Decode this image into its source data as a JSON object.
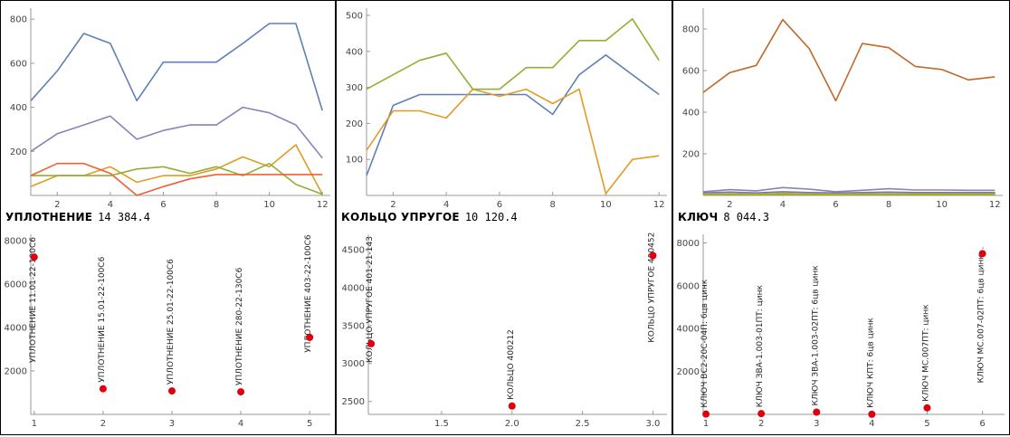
{
  "chart_data": [
    {
      "type": "line",
      "x": [
        1,
        2,
        3,
        4,
        5,
        6,
        7,
        8,
        9,
        10,
        11,
        12
      ],
      "xticks": [
        2,
        4,
        6,
        8,
        10,
        12
      ],
      "yticks": [
        200,
        400,
        600,
        800
      ],
      "xlim": [
        1,
        12.3
      ],
      "ylim": [
        0,
        850
      ],
      "grid": false,
      "series": [
        {
          "color": "#5e81b5",
          "values": [
            430,
            565,
            735,
            690,
            430,
            605,
            605,
            605,
            690,
            780,
            780,
            385
          ]
        },
        {
          "color": "#8f7fbc",
          "values": [
            200,
            280,
            320,
            360,
            255,
            295,
            320,
            320,
            400,
            375,
            320,
            170
          ]
        },
        {
          "color": "#e19c24",
          "values": [
            40,
            90,
            90,
            130,
            60,
            90,
            90,
            120,
            175,
            130,
            230,
            5
          ]
        },
        {
          "color": "#8fb032",
          "values": [
            90,
            90,
            90,
            90,
            120,
            130,
            100,
            130,
            90,
            145,
            50,
            5
          ]
        },
        {
          "color": "#eb6235",
          "values": [
            90,
            145,
            145,
            100,
            0,
            40,
            75,
            95,
            95,
            95,
            95,
            95
          ]
        }
      ]
    },
    {
      "type": "line",
      "x": [
        1,
        2,
        3,
        4,
        5,
        6,
        7,
        8,
        9,
        10,
        11,
        12
      ],
      "xticks": [
        2,
        4,
        6,
        8,
        10,
        12
      ],
      "yticks": [
        100,
        200,
        300,
        400,
        500
      ],
      "xlim": [
        1,
        12.3
      ],
      "ylim": [
        0,
        520
      ],
      "grid": false,
      "series": [
        {
          "color": "#5e81b5",
          "values": [
            55,
            250,
            280,
            280,
            280,
            280,
            280,
            225,
            335,
            390,
            335,
            280
          ]
        },
        {
          "color": "#e19c24",
          "values": [
            125,
            235,
            235,
            215,
            295,
            275,
            295,
            255,
            295,
            5,
            100,
            110
          ]
        },
        {
          "color": "#8fb032",
          "values": [
            295,
            335,
            375,
            395,
            295,
            295,
            355,
            355,
            430,
            430,
            490,
            375
          ]
        }
      ]
    },
    {
      "type": "line",
      "x": [
        1,
        2,
        3,
        4,
        5,
        6,
        7,
        8,
        9,
        10,
        11,
        12
      ],
      "xticks": [
        2,
        4,
        6,
        8,
        10,
        12
      ],
      "yticks": [
        200,
        400,
        600,
        800
      ],
      "xlim": [
        1,
        12.3
      ],
      "ylim": [
        0,
        900
      ],
      "grid": false,
      "series": [
        {
          "color": "#c06a2a",
          "values": [
            495,
            590,
            625,
            845,
            705,
            455,
            730,
            710,
            620,
            605,
            555,
            570
          ]
        },
        {
          "color": "#8f7fbc",
          "values": [
            18,
            28,
            22,
            38,
            30,
            18,
            25,
            32,
            26,
            26,
            25,
            25
          ]
        },
        {
          "color": "#5e81b5",
          "values": [
            12,
            16,
            12,
            18,
            14,
            12,
            14,
            16,
            14,
            14,
            14,
            14
          ]
        },
        {
          "color": "#e19c24",
          "values": [
            6,
            8,
            6,
            10,
            8,
            6,
            8,
            8,
            8,
            8,
            8,
            8
          ]
        },
        {
          "color": "#8fb032",
          "values": [
            2,
            3,
            2,
            4,
            3,
            2,
            3,
            3,
            3,
            3,
            3,
            3
          ]
        }
      ]
    },
    {
      "type": "scatter",
      "xticks": [
        1,
        2,
        3,
        4,
        5
      ],
      "yticks": [
        2000,
        4000,
        6000,
        8000
      ],
      "xlim": [
        0.95,
        5.3
      ],
      "ylim": [
        0,
        8300
      ],
      "grid": false,
      "point_color": "#e0000d",
      "points": [
        {
          "x": 1,
          "y": 7250,
          "label": "УПЛОТНЕНИЕ 11.01-22-100C6"
        },
        {
          "x": 2,
          "y": 1180,
          "label": "УПЛОТНЕНИЕ 15.01-22-100C6"
        },
        {
          "x": 3,
          "y": 1080,
          "label": "УПЛОТНЕНИЕ 25.01-22-100C6"
        },
        {
          "x": 4,
          "y": 1040,
          "label": "УПЛОТНЕНИЕ 280-22-130C6"
        },
        {
          "x": 5,
          "y": 3550,
          "label": "УПЛОТНЕНИЕ 403-22-100C6"
        }
      ]
    },
    {
      "type": "scatter",
      "xticks": [
        1.5,
        2.0,
        2.5,
        3.0
      ],
      "yticks": [
        2500,
        3000,
        3500,
        4000,
        4500
      ],
      "xlim": [
        0.98,
        3.1
      ],
      "ylim": [
        2330,
        4700
      ],
      "grid": false,
      "point_color": "#e0000d",
      "points": [
        {
          "x": 1,
          "y": 3260,
          "label": "КОЛЬЦО УПРУГОЕ 401-21-143"
        },
        {
          "x": 2,
          "y": 2440,
          "label": "КОЛЬЦО 400212"
        },
        {
          "x": 3,
          "y": 4420,
          "label": "КОЛЬЦО УПРУГОЕ 400452"
        }
      ]
    },
    {
      "type": "scatter",
      "xticks": [
        1,
        2,
        3,
        4,
        5,
        6
      ],
      "yticks": [
        2000,
        4000,
        6000,
        8000
      ],
      "xlim": [
        0.95,
        6.4
      ],
      "ylim": [
        0,
        8400
      ],
      "grid": false,
      "point_color": "#e0000d",
      "points": [
        {
          "x": 1,
          "y": 15,
          "label": "КЛЮЧ ВС2-20С-04П: 6цв цинк"
        },
        {
          "x": 2,
          "y": 35,
          "label": "КЛЮЧ ЗВА-1.003-01ПТ: цинк"
        },
        {
          "x": 3,
          "y": 105,
          "label": "КЛЮЧ ЗВА-1.003-02ПТ: 6цв цинк"
        },
        {
          "x": 4,
          "y": 5,
          "label": "КЛЮЧ КПТ: 6цв цинк"
        },
        {
          "x": 5,
          "y": 305,
          "label": "КЛЮЧ МС.007ПТ: цинк"
        },
        {
          "x": 6,
          "y": 7500,
          "label": "КЛЮЧ МС.007-02ПТ: 6цв цинк..."
        }
      ]
    }
  ],
  "panels": [
    {
      "title": "УПЛОТНЕНИЕ",
      "total": "14 384.4"
    },
    {
      "title": "КОЛЬЦО УПРУГОЕ",
      "total": "10 120.4"
    },
    {
      "title": "КЛЮЧ",
      "total": "8 044.3"
    }
  ]
}
